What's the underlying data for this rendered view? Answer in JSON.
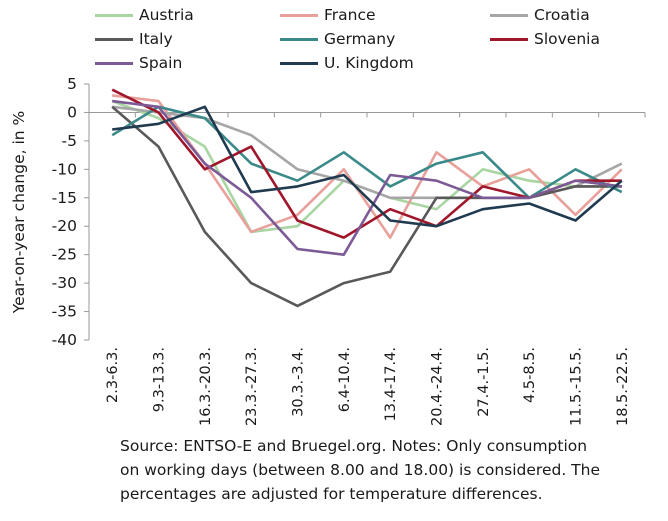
{
  "chart_data": {
    "type": "line",
    "ylabel": "Year-on-year change, in %",
    "xlabel": "",
    "ylim": [
      -40,
      5
    ],
    "yticks": [
      5,
      0,
      -5,
      -10,
      -15,
      -20,
      -25,
      -30,
      -35,
      -40
    ],
    "grid": false,
    "legend_position": "top",
    "categories": [
      "2.3-6.3.",
      "9.3-13.3.",
      "16.3.-20.3.",
      "23.3.-27.3.",
      "30.3.-3.4.",
      "6.4-10.4.",
      "13.4-17.4.",
      "20.4.-24.4.",
      "27.4.-1.5.",
      "4.5-8.5.",
      "11.5.-15.5.",
      "18.5.-22.5."
    ],
    "series": [
      {
        "name": "Austria",
        "color": "#a8d5a2",
        "values": [
          2,
          -1,
          -6,
          -21,
          -20,
          -12,
          -15,
          -17,
          -10,
          -12,
          -13,
          -13
        ]
      },
      {
        "name": "France",
        "color": "#e8a09a",
        "values": [
          3,
          2,
          -9,
          -21,
          -18,
          -10,
          -22,
          -7,
          -13,
          -10,
          -18,
          -10
        ]
      },
      {
        "name": "Croatia",
        "color": "#a6a6a6",
        "values": [
          1,
          0,
          -1,
          -4,
          -10,
          -12,
          -15,
          -15,
          -15,
          -15,
          -13,
          -9
        ]
      },
      {
        "name": "Italy",
        "color": "#595959",
        "values": [
          1,
          -6,
          -21,
          -30,
          -34,
          -30,
          -28,
          -15,
          -15,
          -15,
          -13,
          -13
        ]
      },
      {
        "name": "Germany",
        "color": "#3b8a8a",
        "values": [
          -4,
          1,
          -1,
          -9,
          -12,
          -7,
          -13,
          -9,
          -7,
          -15,
          -10,
          -14
        ]
      },
      {
        "name": "Slovenia",
        "color": "#a0162b",
        "values": [
          4,
          0,
          -10,
          -6,
          -19,
          -22,
          -17,
          -20,
          -13,
          -15,
          -12,
          -12
        ]
      },
      {
        "name": "Spain",
        "color": "#7b5a95",
        "values": [
          2,
          1,
          -9,
          -15,
          -24,
          -25,
          -11,
          -12,
          -15,
          -15,
          -12,
          -13
        ]
      },
      {
        "name": "U. Kingdom",
        "color": "#203a4f",
        "values": [
          -3,
          -2,
          1,
          -14,
          -13,
          -11,
          -19,
          -20,
          -17,
          -16,
          -19,
          -12
        ]
      }
    ]
  },
  "caption": {
    "line1": "Source: ENTSO-E and Bruegel.org. Notes: Only consumption",
    "line2": "on working days (between 8.00 and 18.00) is considered. The",
    "line3": "percentages are adjusted for temperature differences."
  }
}
